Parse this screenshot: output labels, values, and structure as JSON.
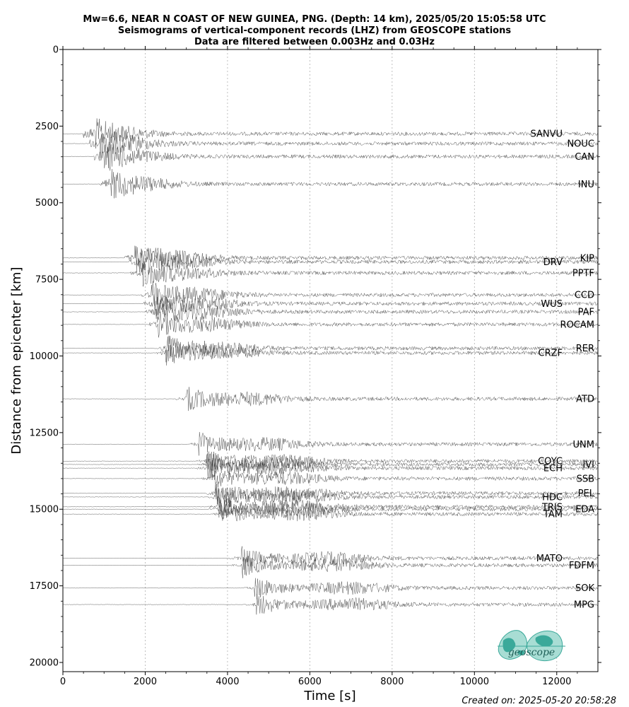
{
  "chart_data": {
    "type": "line",
    "title_lines": [
      "Mw=6.6, NEAR N COAST OF NEW GUINEA, PNG. (Depth: 14 km), 2025/05/20 15:05:58 UTC",
      "Seismograms of vertical-component records (LHZ) from GEOSCOPE stations",
      "Data are filtered between 0.003Hz and 0.03Hz"
    ],
    "xlabel": "Time [s]",
    "ylabel": "Distance from epicenter [km]",
    "xlim": [
      0,
      13000
    ],
    "ylim": [
      20300,
      0
    ],
    "x_ticks": [
      0,
      2000,
      4000,
      6000,
      8000,
      10000,
      12000
    ],
    "y_ticks": [
      0,
      2500,
      5000,
      7500,
      10000,
      12500,
      15000,
      17500,
      20000
    ],
    "x_grid": true,
    "stations": [
      {
        "name": "SANVU",
        "distance": 2750,
        "arrival": 750,
        "label_pos": "left"
      },
      {
        "name": "NOUC",
        "distance": 3070,
        "arrival": 900,
        "label_pos": "right"
      },
      {
        "name": "CAN",
        "distance": 3490,
        "arrival": 1000,
        "label_pos": "right"
      },
      {
        "name": "INU",
        "distance": 4390,
        "arrival": 1150,
        "label_pos": "right"
      },
      {
        "name": "KIP",
        "distance": 6800,
        "arrival": 1750,
        "label_pos": "right"
      },
      {
        "name": "DRV",
        "distance": 6930,
        "arrival": 1850,
        "label_pos": "left"
      },
      {
        "name": "PPTF",
        "distance": 7290,
        "arrival": 1900,
        "label_pos": "right"
      },
      {
        "name": "CCD",
        "distance": 8010,
        "arrival": 2150,
        "label_pos": "right"
      },
      {
        "name": "WUS",
        "distance": 8290,
        "arrival": 2200,
        "label_pos": "left"
      },
      {
        "name": "PAF",
        "distance": 8560,
        "arrival": 2250,
        "label_pos": "right"
      },
      {
        "name": "ROCAM",
        "distance": 8970,
        "arrival": 2300,
        "label_pos": "right"
      },
      {
        "name": "RER",
        "distance": 9750,
        "arrival": 2500,
        "label_pos": "right"
      },
      {
        "name": "CRZF",
        "distance": 9900,
        "arrival": 2520,
        "label_pos": "left"
      },
      {
        "name": "ATD",
        "distance": 11400,
        "arrival": 3000,
        "label_pos": "right"
      },
      {
        "name": "UNM",
        "distance": 12880,
        "arrival": 3300,
        "label_pos": "right"
      },
      {
        "name": "COYC",
        "distance": 13430,
        "arrival": 3500,
        "label_pos": "left"
      },
      {
        "name": "IVI",
        "distance": 13540,
        "arrival": 3500,
        "label_pos": "right"
      },
      {
        "name": "ECH",
        "distance": 13660,
        "arrival": 3500,
        "label_pos": "left"
      },
      {
        "name": "SSB",
        "distance": 14000,
        "arrival": 3600,
        "label_pos": "right"
      },
      {
        "name": "PEL",
        "distance": 14480,
        "arrival": 3700,
        "label_pos": "right"
      },
      {
        "name": "HDC",
        "distance": 14600,
        "arrival": 3700,
        "label_pos": "left"
      },
      {
        "name": "TRIS",
        "distance": 14920,
        "arrival": 3750,
        "label_pos": "left"
      },
      {
        "name": "EDA",
        "distance": 15000,
        "arrival": 3800,
        "label_pos": "right"
      },
      {
        "name": "TAM",
        "distance": 15160,
        "arrival": 3850,
        "label_pos": "left"
      },
      {
        "name": "MATO",
        "distance": 16600,
        "arrival": 4300,
        "label_pos": "left"
      },
      {
        "name": "FDFM",
        "distance": 16830,
        "arrival": 4350,
        "label_pos": "right"
      },
      {
        "name": "SOK",
        "distance": 17570,
        "arrival": 4650,
        "label_pos": "right"
      },
      {
        "name": "MPG",
        "distance": 18110,
        "arrival": 4700,
        "label_pos": "right"
      }
    ]
  },
  "footer": {
    "created": "Created on: 2025-05-20 20:58:28"
  },
  "logo": {
    "text": "geoscope",
    "color": "#3aa99a"
  }
}
